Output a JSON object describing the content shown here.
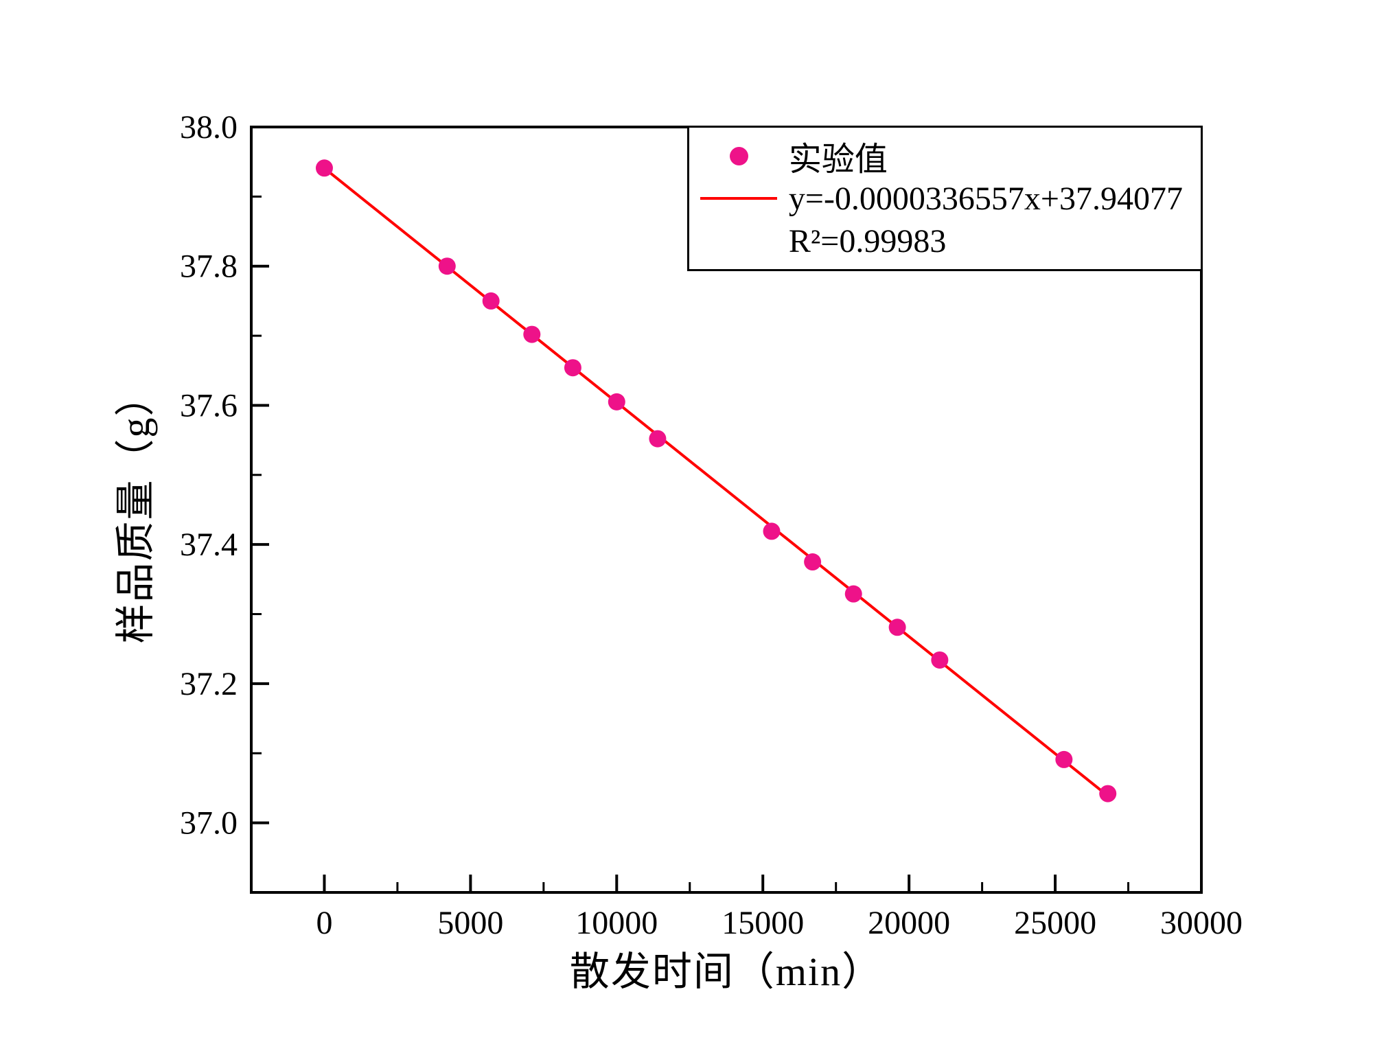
{
  "chart": {
    "x_axis": {
      "label": "散发时间（min）",
      "ticks": [
        0,
        5000,
        10000,
        15000,
        20000,
        25000,
        30000
      ],
      "tick_labels": [
        "0",
        "5000",
        "10000",
        "15000",
        "20000",
        "25000",
        "30000"
      ],
      "minor_ticks": [
        2500,
        7500,
        12500,
        17500,
        22500,
        27500
      ],
      "range": [
        -2500,
        30000
      ]
    },
    "y_axis": {
      "label": "样品质量（g）",
      "ticks": [
        37.0,
        37.2,
        37.4,
        37.6,
        37.8,
        38.0
      ],
      "tick_labels": [
        "37.0",
        "37.2",
        "37.4",
        "37.6",
        "37.8",
        "38.0"
      ],
      "minor_ticks": [
        37.1,
        37.3,
        37.5,
        37.7,
        37.9
      ],
      "range": [
        36.9,
        38.0
      ]
    },
    "colors": {
      "points": "#EE1289",
      "line": "#FF0000",
      "axis": "#000000"
    }
  },
  "chart_data": {
    "type": "scatter",
    "title": "",
    "xlabel": "散发时间（min）",
    "ylabel": "样品质量（g）",
    "xlim": [
      -2500,
      30000
    ],
    "ylim": [
      36.9,
      38.0
    ],
    "grid": false,
    "legend_position": "top-right",
    "series": [
      {
        "name": "实验值",
        "x": [
          0,
          4200,
          5700,
          7100,
          8500,
          10000,
          11400,
          15300,
          16700,
          18100,
          19600,
          21050,
          25300,
          26800
        ],
        "y": [
          37.941,
          37.8,
          37.75,
          37.702,
          37.654,
          37.605,
          37.552,
          37.419,
          37.375,
          37.329,
          37.281,
          37.234,
          37.091,
          37.042
        ]
      }
    ],
    "fit": {
      "equation": "y=-0.0000336557x+37.94077",
      "slope": -3.36557e-05,
      "intercept": 37.94077,
      "r_squared": 0.99983,
      "r_squared_label": "R²=0.99983",
      "x_range": [
        0,
        26800
      ]
    }
  },
  "legend": {
    "items": [
      {
        "symbol": "circle",
        "label": "实验值"
      },
      {
        "symbol": "line",
        "label": "y=-0.0000336557x+37.94077"
      },
      {
        "symbol": "none",
        "label": "R²=0.99983"
      }
    ]
  }
}
